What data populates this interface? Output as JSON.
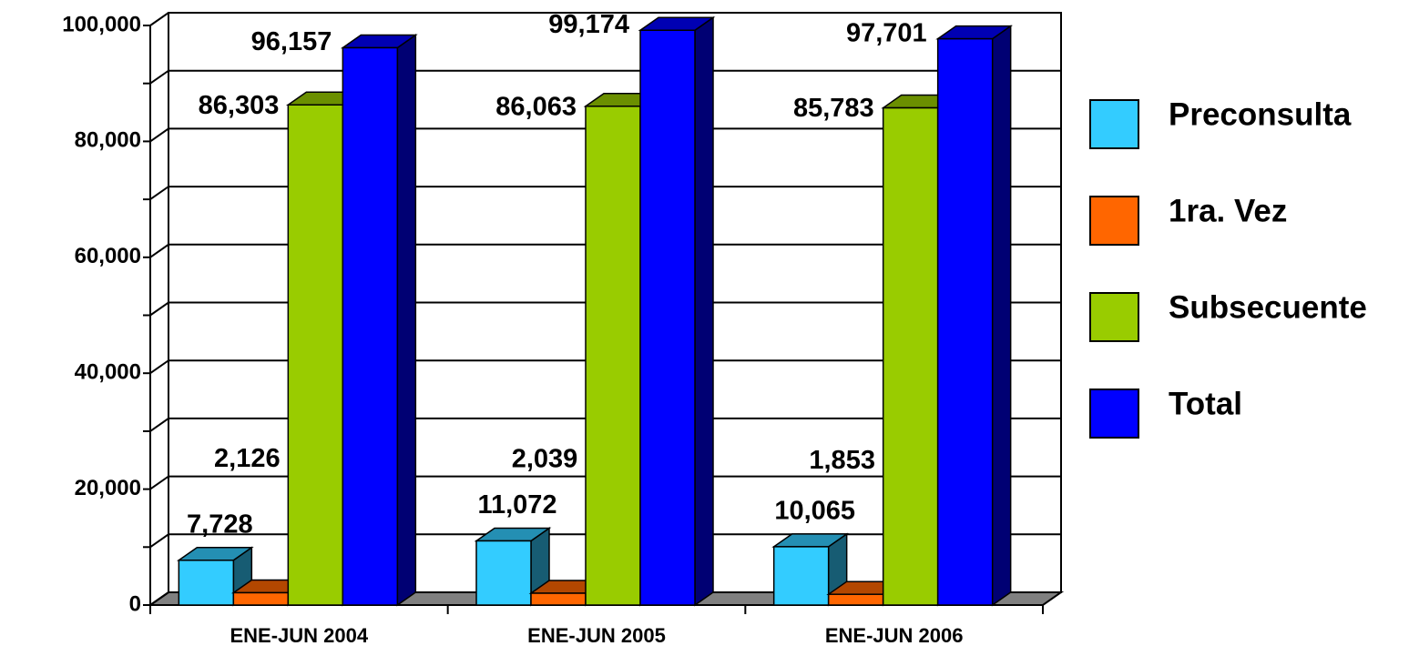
{
  "chart_data": {
    "type": "bar3d",
    "categories": [
      "ENE-JUN 2004",
      "ENE-JUN 2005",
      "ENE-JUN 2006"
    ],
    "series": [
      {
        "name": "Preconsulta",
        "color": "#33ccff",
        "values": [
          7728,
          11072,
          10065
        ],
        "value_labels": [
          "7,728",
          "11,072",
          "10,065"
        ]
      },
      {
        "name": "1ra. Vez",
        "color": "#ff6600",
        "values": [
          2126,
          2039,
          1853
        ],
        "value_labels": [
          "2,126",
          "2,039",
          "1,853"
        ]
      },
      {
        "name": "Subsecuente",
        "color": "#99cc00",
        "values": [
          86303,
          86063,
          85783
        ],
        "value_labels": [
          "86,303",
          "86,063",
          "85,783"
        ]
      },
      {
        "name": "Total",
        "color": "#0000ff",
        "values": [
          96157,
          99174,
          97701
        ],
        "value_labels": [
          "96,157",
          "99,174",
          "97,701"
        ]
      }
    ],
    "ylim": [
      0,
      100000
    ],
    "yticks": [
      0,
      {
        "value": 20000,
        "label": "20,000"
      },
      {
        "value": 40000,
        "label": "40,000"
      },
      {
        "value": 60000,
        "label": "60,000"
      },
      {
        "value": 80000,
        "label": "80,000"
      },
      {
        "value": 100000,
        "label": "100,000"
      }
    ],
    "minor_yticks": [
      10000,
      30000,
      50000,
      70000,
      90000
    ],
    "grid": true,
    "legend": "right"
  }
}
